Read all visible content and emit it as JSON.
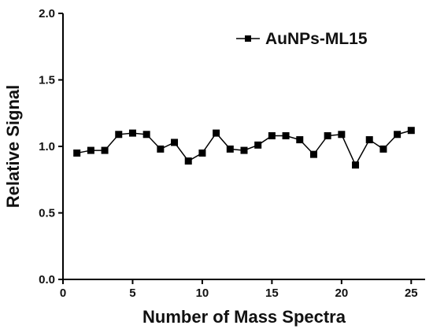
{
  "chart_data": {
    "type": "line",
    "xlabel": "Number of Mass Spectra",
    "ylabel": "Relative Signal",
    "xlim": [
      0,
      26
    ],
    "ylim": [
      0.0,
      2.0
    ],
    "xticks": [
      0,
      5,
      10,
      15,
      20,
      25
    ],
    "yticks": [
      0.0,
      0.5,
      1.0,
      1.5,
      2.0
    ],
    "xtick_labels": [
      "0",
      "5",
      "10",
      "15",
      "20",
      "25"
    ],
    "ytick_labels": [
      "0.0",
      "0.5",
      "1.0",
      "1.5",
      "2.0"
    ],
    "grid": false,
    "legend_position": "top-right",
    "series": [
      {
        "name": "AuNPs-ML15",
        "marker": "square",
        "color": "#000000",
        "x": [
          1,
          2,
          3,
          4,
          5,
          6,
          7,
          8,
          9,
          10,
          11,
          12,
          13,
          14,
          15,
          16,
          17,
          18,
          19,
          20,
          21,
          22,
          23,
          24,
          25
        ],
        "y": [
          0.95,
          0.97,
          0.97,
          1.09,
          1.1,
          1.09,
          0.98,
          1.03,
          0.89,
          0.95,
          1.1,
          0.98,
          0.97,
          1.01,
          1.08,
          1.08,
          1.05,
          0.94,
          1.08,
          1.09,
          0.86,
          1.05,
          0.98,
          1.09,
          1.12
        ]
      }
    ]
  }
}
